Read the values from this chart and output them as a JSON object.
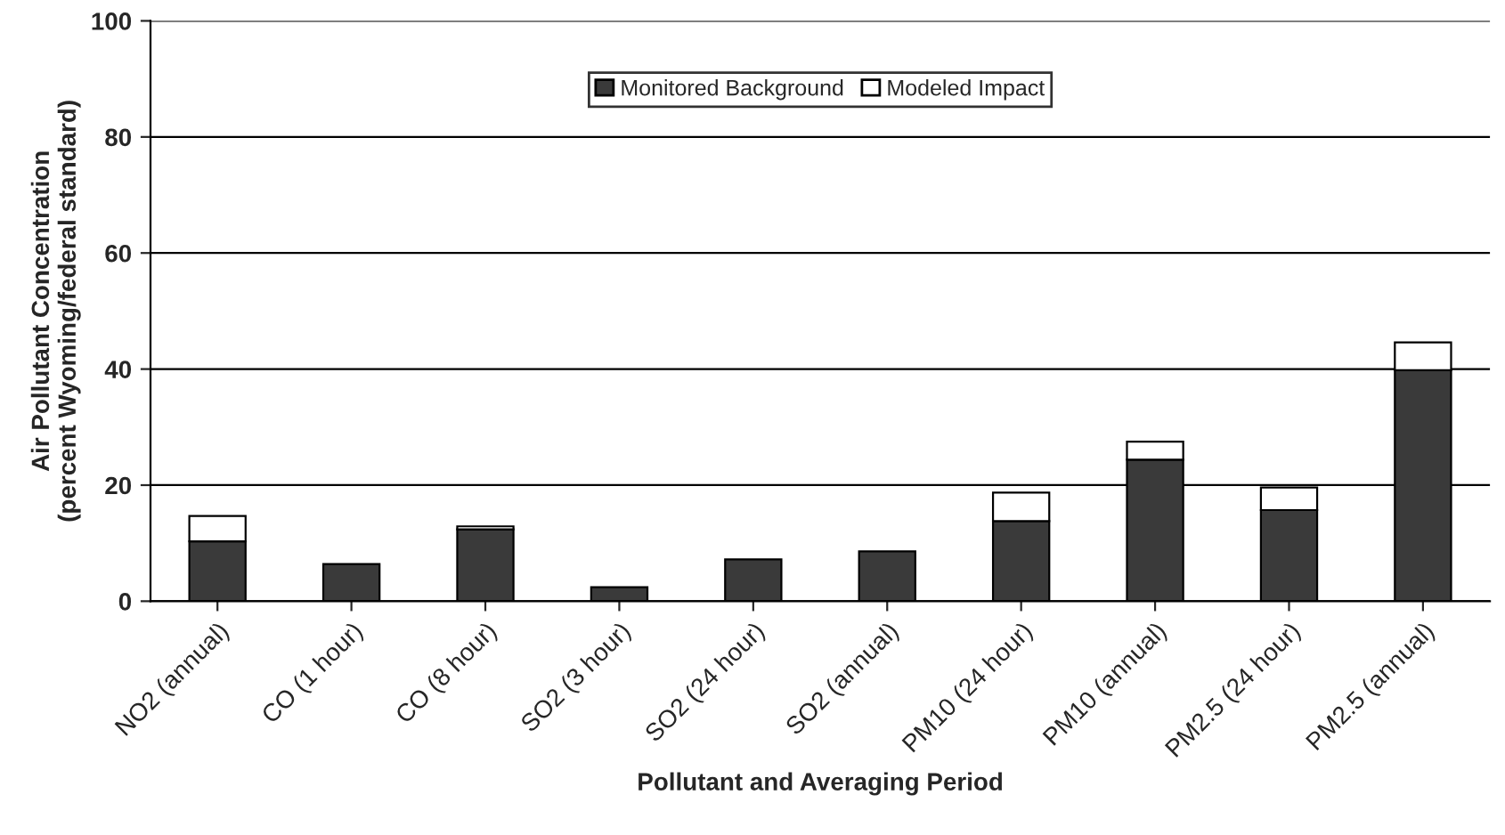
{
  "chart_data": {
    "type": "bar",
    "stacked": true,
    "xlabel": "Pollutant and Averaging Period",
    "ylabel": "Air Pollutant Concentration\n(percent Wyoming/federal standard)",
    "categories": [
      "NO2 (annual)",
      "CO (1 hour)",
      "CO (8 hour)",
      "SO2 (3 hour)",
      "SO2 (24 hour)",
      "SO2 (annual)",
      "PM10 (24 hour)",
      "PM10 (annual)",
      "PM2.5 (24 hour)",
      "PM2.5 (annual)"
    ],
    "series": [
      {
        "name": "Monitored Background",
        "color": "#3a3a3a",
        "values": [
          10.3,
          6.4,
          12.4,
          2.4,
          7.2,
          8.6,
          13.8,
          24.4,
          15.7,
          39.8
        ]
      },
      {
        "name": "Modeled Impact",
        "color": "#ffffff",
        "values": [
          4.4,
          null,
          0.5,
          null,
          null,
          null,
          4.9,
          3.1,
          3.9,
          4.8
        ]
      }
    ],
    "ylim": [
      0,
      100
    ],
    "yticks": [
      0,
      20,
      40,
      60,
      80,
      100
    ],
    "grid": "y",
    "legend": "top"
  }
}
